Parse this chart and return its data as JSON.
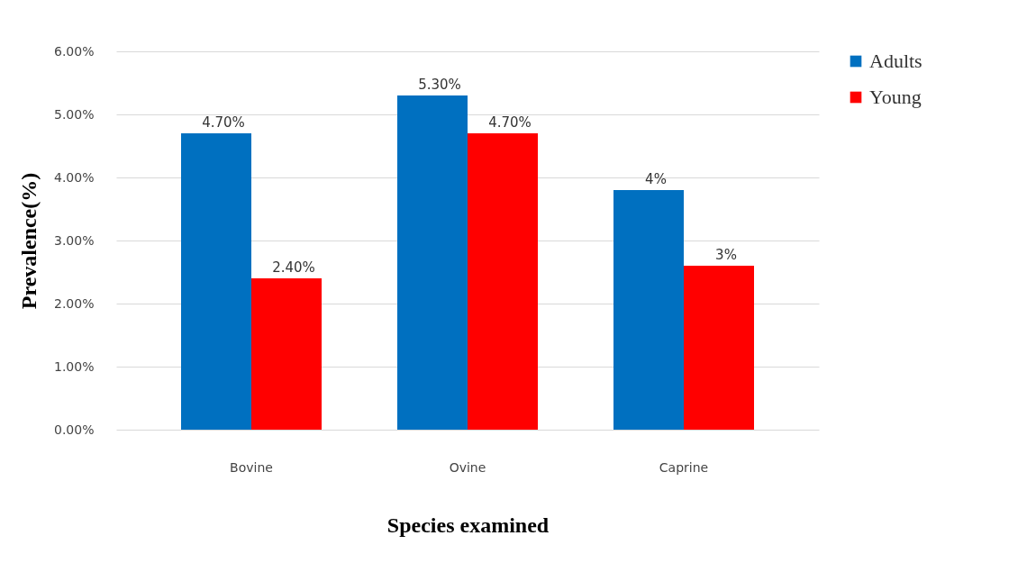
{
  "chart_data": {
    "type": "bar",
    "xlabel": "Species examined",
    "ylabel": "Prevalence(%)",
    "categories": [
      "Bovine",
      "Ovine",
      "Caprine"
    ],
    "series": [
      {
        "name": "Adults",
        "color": "#0070c0",
        "values": [
          4.7,
          5.3,
          3.8
        ],
        "value_labels": [
          "4.70%",
          "5.30%",
          "4%"
        ]
      },
      {
        "name": "Young",
        "color": "#ff0000",
        "values": [
          2.4,
          4.7,
          2.6
        ],
        "value_labels": [
          "2.40%",
          "4.70%",
          "3%"
        ]
      }
    ],
    "ylim": [
      0,
      6
    ],
    "yticks": [
      {
        "value": 0,
        "label": "0.00%"
      },
      {
        "value": 1,
        "label": "1.00%"
      },
      {
        "value": 2,
        "label": "2.00%"
      },
      {
        "value": 3,
        "label": "3.00%"
      },
      {
        "value": 4,
        "label": "4.00%"
      },
      {
        "value": 5,
        "label": "5.00%"
      },
      {
        "value": 6,
        "label": "6.00%"
      }
    ],
    "grid": "y",
    "legend": "right"
  }
}
